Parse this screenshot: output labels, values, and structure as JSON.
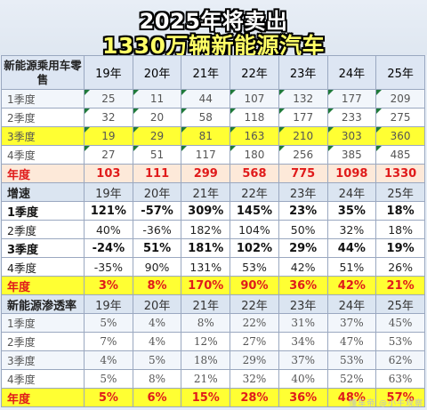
{
  "headline": {
    "line1": "2025年将卖出",
    "line2": "1330万辆新能源汽车"
  },
  "watermark": "懂车帝 @小牛观察",
  "chart_data": {
    "type": "table",
    "sections": [
      {
        "header": "新能源乘用车零售",
        "columns": [
          "19年",
          "20年",
          "21年",
          "22年",
          "23年",
          "24年",
          "25年"
        ],
        "rows": [
          {
            "label": "1季度",
            "values": [
              "25",
              "11",
              "44",
              "107",
              "132",
              "177",
              "209"
            ]
          },
          {
            "label": "2季度",
            "values": [
              "32",
              "20",
              "58",
              "118",
              "177",
              "233",
              "275"
            ]
          },
          {
            "label": "3季度",
            "values": [
              "19",
              "29",
              "81",
              "163",
              "210",
              "303",
              "360"
            ]
          },
          {
            "label": "4季度",
            "values": [
              "27",
              "51",
              "117",
              "180",
              "256",
              "385",
              "485"
            ]
          },
          {
            "label": "年度",
            "values": [
              "103",
              "111",
              "299",
              "568",
              "775",
              "1098",
              "1330"
            ]
          }
        ]
      },
      {
        "header": "增速",
        "columns": [
          "19年",
          "20年",
          "21年",
          "22年",
          "23年",
          "24年",
          "25年"
        ],
        "rows": [
          {
            "label": "1季度",
            "values": [
              "121%",
              "-57%",
              "309%",
              "145%",
              "23%",
              "35%",
              "18%"
            ]
          },
          {
            "label": "2季度",
            "values": [
              "40%",
              "-36%",
              "182%",
              "104%",
              "50%",
              "32%",
              "18%"
            ]
          },
          {
            "label": "3季度",
            "values": [
              "-24%",
              "51%",
              "181%",
              "102%",
              "29%",
              "44%",
              "19%"
            ]
          },
          {
            "label": "4季度",
            "values": [
              "-35%",
              "90%",
              "131%",
              "53%",
              "42%",
              "51%",
              "26%"
            ]
          },
          {
            "label": "年度",
            "values": [
              "3%",
              "8%",
              "170%",
              "90%",
              "36%",
              "42%",
              "21%"
            ]
          }
        ]
      },
      {
        "header": "新能源渗透率",
        "columns": [
          "19年",
          "20年",
          "21年",
          "22年",
          "23年",
          "24年",
          "25年"
        ],
        "rows": [
          {
            "label": "1季度",
            "values": [
              "5%",
              "4%",
              "8%",
              "22%",
              "31%",
              "37%",
              "45%"
            ]
          },
          {
            "label": "2季度",
            "values": [
              "7%",
              "4%",
              "12%",
              "27%",
              "34%",
              "47%",
              "53%"
            ]
          },
          {
            "label": "3季度",
            "values": [
              "4%",
              "5%",
              "18%",
              "29%",
              "37%",
              "53%",
              "62%"
            ]
          },
          {
            "label": "4季度",
            "values": [
              "5%",
              "8%",
              "21%",
              "32%",
              "40%",
              "52%",
              "63%"
            ]
          },
          {
            "label": "年度",
            "values": [
              "5%",
              "6%",
              "15%",
              "28%",
              "36%",
              "48%",
              "57%"
            ]
          }
        ]
      }
    ]
  }
}
